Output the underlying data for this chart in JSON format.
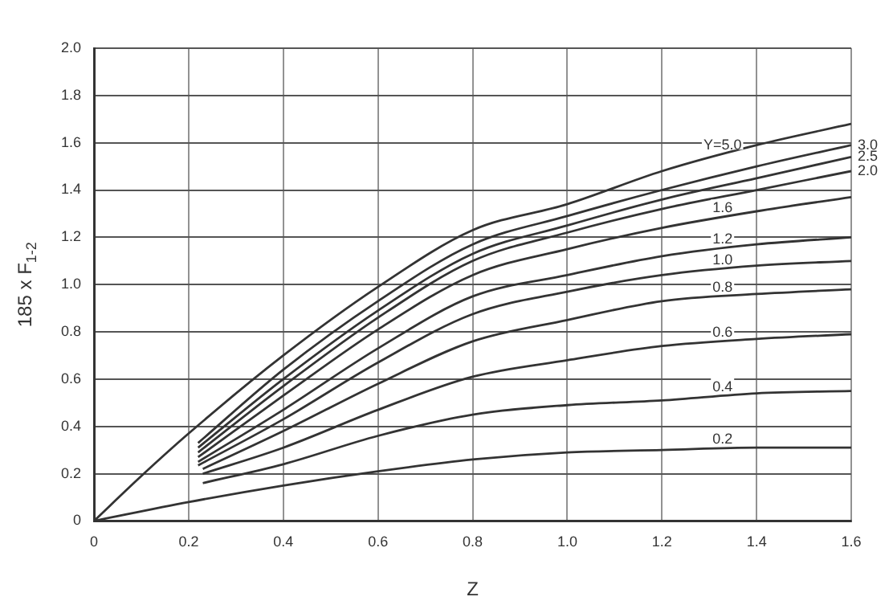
{
  "chart_data": {
    "type": "line",
    "xlabel": "Z",
    "ylabel": "185 x F$_{1-2}$",
    "xlim": [
      0,
      1.6
    ],
    "xticks": [
      0,
      0.2,
      0.4,
      0.6,
      0.8,
      {
        "value": 1,
        "label": "1.0"
      },
      1.2,
      1.4,
      1.6
    ],
    "ylim": [
      0,
      2
    ],
    "yticks": [
      0,
      0.2,
      0.4,
      0.6,
      0.8,
      {
        "value": 1,
        "label": "1.0"
      },
      1.2,
      1.4,
      1.6,
      1.8,
      {
        "value": 2,
        "label": "2.0"
      }
    ],
    "grid": true,
    "legend": false,
    "marker": "none",
    "line_style": "solid",
    "series": [
      {
        "name": "Y=5.0",
        "color": "#333333",
        "x": [
          0,
          0.1,
          0.2,
          0.4,
          0.6,
          0.8,
          1,
          1.2,
          1.4,
          1.6
        ],
        "values": [
          0,
          0.19,
          0.37,
          0.7,
          0.99,
          1.23,
          1.34,
          1.48,
          1.59,
          1.68
        ]
      },
      {
        "name": "3.0",
        "color": "#333333",
        "x": [
          0.22,
          0.4,
          0.6,
          0.8,
          1,
          1.2,
          1.4,
          1.6
        ],
        "values": [
          0.33,
          0.64,
          0.93,
          1.17,
          1.29,
          1.4,
          1.5,
          1.59
        ]
      },
      {
        "name": "2.5",
        "color": "#333333",
        "x": [
          0.22,
          0.4,
          0.6,
          0.8,
          1,
          1.2,
          1.4,
          1.6
        ],
        "values": [
          0.31,
          0.6,
          0.89,
          1.13,
          1.25,
          1.36,
          1.45,
          1.54
        ]
      },
      {
        "name": "2.0",
        "color": "#333333",
        "x": [
          0.22,
          0.4,
          0.6,
          0.8,
          1,
          1.2,
          1.4,
          1.6
        ],
        "values": [
          0.29,
          0.57,
          0.86,
          1.1,
          1.22,
          1.32,
          1.4,
          1.48
        ]
      },
      {
        "name": "1.6",
        "color": "#333333",
        "x": [
          0.22,
          0.4,
          0.6,
          0.8,
          1,
          1.2,
          1.4,
          1.6
        ],
        "values": [
          0.27,
          0.53,
          0.81,
          1.04,
          1.15,
          1.24,
          1.31,
          1.37
        ]
      },
      {
        "name": "1.2",
        "color": "#333333",
        "x": [
          0.22,
          0.4,
          0.6,
          0.8,
          1,
          1.2,
          1.4,
          1.6
        ],
        "values": [
          0.25,
          0.47,
          0.73,
          0.95,
          1.04,
          1.12,
          1.17,
          1.2
        ]
      },
      {
        "name": "1.0",
        "color": "#333333",
        "x": [
          0.22,
          0.4,
          0.6,
          0.8,
          1,
          1.2,
          1.4,
          1.6
        ],
        "values": [
          0.235,
          0.43,
          0.67,
          0.875,
          0.97,
          1.04,
          1.08,
          1.1
        ]
      },
      {
        "name": "0.8",
        "color": "#333333",
        "x": [
          0.23,
          0.4,
          0.6,
          0.8,
          1,
          1.2,
          1.4,
          1.6
        ],
        "values": [
          0.22,
          0.38,
          0.58,
          0.76,
          0.85,
          0.93,
          0.96,
          0.98
        ]
      },
      {
        "name": "0.6",
        "color": "#333333",
        "x": [
          0.23,
          0.4,
          0.6,
          0.8,
          1,
          1.2,
          1.4,
          1.6
        ],
        "values": [
          0.2,
          0.31,
          0.47,
          0.61,
          0.68,
          0.74,
          0.77,
          0.79
        ]
      },
      {
        "name": "0.4",
        "color": "#333333",
        "x": [
          0.23,
          0.4,
          0.6,
          0.8,
          1,
          1.2,
          1.4,
          1.6
        ],
        "values": [
          0.16,
          0.24,
          0.36,
          0.45,
          0.49,
          0.51,
          0.54,
          0.55
        ]
      },
      {
        "name": "0.2",
        "color": "#333333",
        "x": [
          0,
          0.2,
          0.4,
          0.6,
          0.8,
          1,
          1.2,
          1.4,
          1.6
        ],
        "values": [
          0,
          0.08,
          0.15,
          0.21,
          0.26,
          0.29,
          0.3,
          0.31,
          0.31
        ]
      }
    ]
  }
}
